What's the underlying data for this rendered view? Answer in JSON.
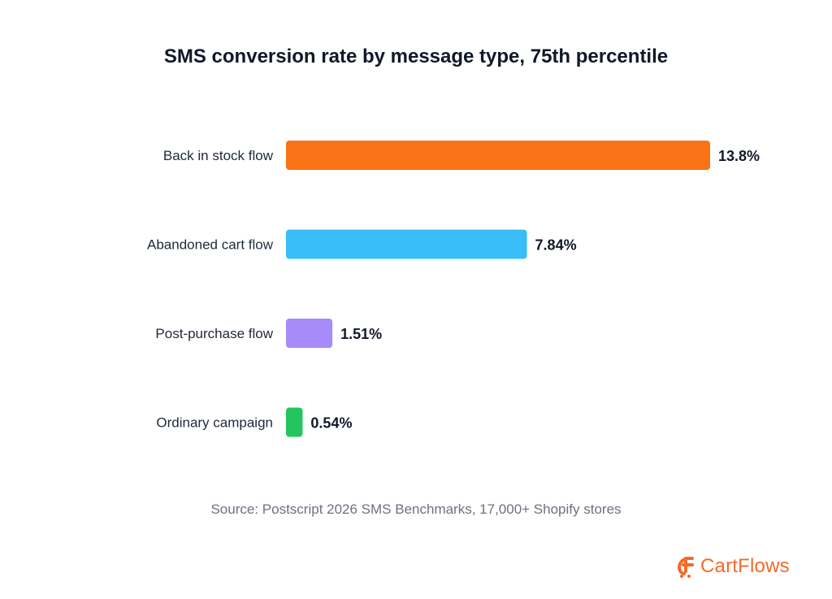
{
  "chart_data": {
    "type": "bar",
    "orientation": "horizontal",
    "title": "SMS conversion rate by message type, 75th percentile",
    "categories": [
      "Back in stock flow",
      "Abandoned cart flow",
      "Post-purchase flow",
      "Ordinary campaign"
    ],
    "values": [
      13.8,
      7.84,
      1.51,
      0.54
    ],
    "value_labels": [
      "13.8%",
      "7.84%",
      "1.51%",
      "0.54%"
    ],
    "colors": [
      "#f97316",
      "#38bdf8",
      "#a78bfa",
      "#22c55e"
    ],
    "xlim": [
      0,
      13.8
    ],
    "grid": false,
    "legend": "none"
  },
  "source": "Source: Postscript 2026 SMS Benchmarks, 17,000+ Shopify stores",
  "brand": {
    "name": "CartFlows",
    "icon": "cartflows-logo-icon",
    "color": "#f26b2a"
  }
}
